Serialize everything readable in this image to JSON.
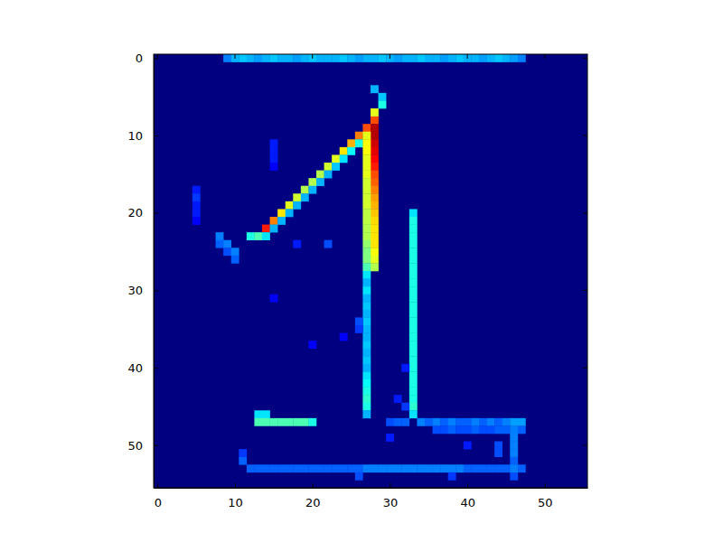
{
  "chart_data": {
    "type": "heatmap",
    "xlim": [
      -0.5,
      55.5
    ],
    "ylim": [
      55.5,
      -0.5
    ],
    "xticks": [
      0,
      10,
      20,
      30,
      40,
      50
    ],
    "yticks": [
      0,
      10,
      20,
      30,
      40,
      50
    ],
    "zlim": [
      0,
      1
    ],
    "cells": [
      [
        0,
        9,
        0.25
      ],
      [
        0,
        10,
        0.3
      ],
      [
        0,
        11,
        0.32
      ],
      [
        0,
        12,
        0.3
      ],
      [
        0,
        13,
        0.28
      ],
      [
        0,
        14,
        0.3
      ],
      [
        0,
        15,
        0.32
      ],
      [
        0,
        16,
        0.3
      ],
      [
        0,
        17,
        0.3
      ],
      [
        0,
        18,
        0.28
      ],
      [
        0,
        19,
        0.3
      ],
      [
        0,
        20,
        0.32
      ],
      [
        0,
        21,
        0.3
      ],
      [
        0,
        22,
        0.3
      ],
      [
        0,
        23,
        0.3
      ],
      [
        0,
        24,
        0.32
      ],
      [
        0,
        25,
        0.3
      ],
      [
        0,
        26,
        0.28
      ],
      [
        0,
        27,
        0.3
      ],
      [
        0,
        28,
        0.3
      ],
      [
        0,
        29,
        0.32
      ],
      [
        0,
        30,
        0.3
      ],
      [
        0,
        31,
        0.28
      ],
      [
        0,
        32,
        0.3
      ],
      [
        0,
        33,
        0.3
      ],
      [
        0,
        34,
        0.32
      ],
      [
        0,
        35,
        0.3
      ],
      [
        0,
        36,
        0.3
      ],
      [
        0,
        37,
        0.28
      ],
      [
        0,
        38,
        0.3
      ],
      [
        0,
        39,
        0.32
      ],
      [
        0,
        40,
        0.3
      ],
      [
        0,
        41,
        0.3
      ],
      [
        0,
        42,
        0.28
      ],
      [
        0,
        43,
        0.3
      ],
      [
        0,
        44,
        0.32
      ],
      [
        0,
        45,
        0.3
      ],
      [
        0,
        46,
        0.28
      ],
      [
        0,
        47,
        0.25
      ],
      [
        4,
        28,
        0.3
      ],
      [
        5,
        29,
        0.32
      ],
      [
        6,
        29,
        0.4
      ],
      [
        23,
        12,
        0.4
      ],
      [
        23,
        13,
        0.45
      ],
      [
        22,
        14,
        0.85
      ],
      [
        21,
        15,
        0.75
      ],
      [
        20,
        16,
        0.65
      ],
      [
        19,
        17,
        0.6
      ],
      [
        18,
        18,
        0.58
      ],
      [
        17,
        19,
        0.55
      ],
      [
        16,
        20,
        0.55
      ],
      [
        15,
        21,
        0.55
      ],
      [
        14,
        22,
        0.58
      ],
      [
        13,
        23,
        0.6
      ],
      [
        12,
        24,
        0.65
      ],
      [
        11,
        25,
        0.7
      ],
      [
        10,
        26,
        0.75
      ],
      [
        9,
        27,
        0.8
      ],
      [
        8,
        28,
        0.8
      ],
      [
        7,
        28,
        0.6
      ],
      [
        23,
        14,
        0.35
      ],
      [
        22,
        15,
        0.3
      ],
      [
        21,
        16,
        0.3
      ],
      [
        20,
        17,
        0.3
      ],
      [
        19,
        18,
        0.3
      ],
      [
        18,
        19,
        0.3
      ],
      [
        17,
        20,
        0.3
      ],
      [
        16,
        21,
        0.3
      ],
      [
        15,
        22,
        0.3
      ],
      [
        14,
        23,
        0.32
      ],
      [
        13,
        24,
        0.35
      ],
      [
        12,
        25,
        0.38
      ],
      [
        11,
        26,
        0.4
      ],
      [
        9,
        28,
        0.95
      ],
      [
        10,
        28,
        0.95
      ],
      [
        11,
        28,
        0.92
      ],
      [
        12,
        28,
        0.9
      ],
      [
        13,
        28,
        0.88
      ],
      [
        14,
        28,
        0.85
      ],
      [
        15,
        28,
        0.8
      ],
      [
        16,
        28,
        0.78
      ],
      [
        17,
        28,
        0.75
      ],
      [
        18,
        28,
        0.72
      ],
      [
        19,
        28,
        0.7
      ],
      [
        20,
        28,
        0.68
      ],
      [
        21,
        28,
        0.66
      ],
      [
        22,
        28,
        0.65
      ],
      [
        23,
        28,
        0.65
      ],
      [
        24,
        28,
        0.65
      ],
      [
        25,
        28,
        0.62
      ],
      [
        26,
        28,
        0.6
      ],
      [
        27,
        28,
        0.55
      ],
      [
        10,
        27,
        0.6
      ],
      [
        11,
        27,
        0.62
      ],
      [
        12,
        27,
        0.62
      ],
      [
        13,
        27,
        0.6
      ],
      [
        14,
        27,
        0.6
      ],
      [
        15,
        27,
        0.6
      ],
      [
        16,
        27,
        0.58
      ],
      [
        17,
        27,
        0.58
      ],
      [
        18,
        27,
        0.58
      ],
      [
        19,
        27,
        0.58
      ],
      [
        20,
        27,
        0.56
      ],
      [
        21,
        27,
        0.56
      ],
      [
        22,
        27,
        0.55
      ],
      [
        23,
        27,
        0.55
      ],
      [
        24,
        27,
        0.52
      ],
      [
        25,
        27,
        0.5
      ],
      [
        26,
        27,
        0.5
      ],
      [
        27,
        27,
        0.45
      ],
      [
        28,
        27,
        0.35
      ],
      [
        29,
        27,
        0.3
      ],
      [
        30,
        27,
        0.35
      ],
      [
        31,
        27,
        0.3
      ],
      [
        32,
        27,
        0.32
      ],
      [
        33,
        27,
        0.3
      ],
      [
        34,
        27,
        0.32
      ],
      [
        35,
        27,
        0.3
      ],
      [
        36,
        27,
        0.3
      ],
      [
        37,
        27,
        0.32
      ],
      [
        38,
        27,
        0.3
      ],
      [
        39,
        27,
        0.32
      ],
      [
        40,
        27,
        0.3
      ],
      [
        41,
        27,
        0.35
      ],
      [
        42,
        27,
        0.38
      ],
      [
        43,
        27,
        0.4
      ],
      [
        44,
        27,
        0.42
      ],
      [
        45,
        27,
        0.4
      ],
      [
        46,
        27,
        0.3
      ],
      [
        20,
        33,
        0.35
      ],
      [
        21,
        33,
        0.4
      ],
      [
        22,
        33,
        0.4
      ],
      [
        23,
        33,
        0.4
      ],
      [
        24,
        33,
        0.4
      ],
      [
        25,
        33,
        0.4
      ],
      [
        26,
        33,
        0.4
      ],
      [
        27,
        33,
        0.4
      ],
      [
        28,
        33,
        0.4
      ],
      [
        29,
        33,
        0.4
      ],
      [
        30,
        33,
        0.4
      ],
      [
        31,
        33,
        0.4
      ],
      [
        32,
        33,
        0.4
      ],
      [
        33,
        33,
        0.4
      ],
      [
        34,
        33,
        0.4
      ],
      [
        35,
        33,
        0.4
      ],
      [
        36,
        33,
        0.4
      ],
      [
        37,
        33,
        0.4
      ],
      [
        38,
        33,
        0.4
      ],
      [
        39,
        33,
        0.4
      ],
      [
        40,
        33,
        0.4
      ],
      [
        41,
        33,
        0.4
      ],
      [
        42,
        33,
        0.4
      ],
      [
        43,
        33,
        0.4
      ],
      [
        44,
        33,
        0.4
      ],
      [
        45,
        33,
        0.42
      ],
      [
        46,
        33,
        0.35
      ],
      [
        46,
        13,
        0.35
      ],
      [
        46,
        14,
        0.35
      ],
      [
        47,
        13,
        0.45
      ],
      [
        47,
        14,
        0.45
      ],
      [
        47,
        15,
        0.45
      ],
      [
        47,
        16,
        0.45
      ],
      [
        47,
        17,
        0.45
      ],
      [
        47,
        18,
        0.45
      ],
      [
        47,
        19,
        0.45
      ],
      [
        47,
        20,
        0.4
      ],
      [
        47,
        30,
        0.2
      ],
      [
        47,
        31,
        0.22
      ],
      [
        47,
        32,
        0.22
      ],
      [
        47,
        34,
        0.25
      ],
      [
        47,
        35,
        0.22
      ],
      [
        47,
        36,
        0.25
      ],
      [
        47,
        37,
        0.22
      ],
      [
        47,
        38,
        0.25
      ],
      [
        47,
        39,
        0.22
      ],
      [
        47,
        40,
        0.22
      ],
      [
        47,
        41,
        0.25
      ],
      [
        47,
        42,
        0.22
      ],
      [
        47,
        43,
        0.25
      ],
      [
        47,
        44,
        0.22
      ],
      [
        47,
        45,
        0.25
      ],
      [
        47,
        46,
        0.28
      ],
      [
        47,
        47,
        0.28
      ],
      [
        48,
        36,
        0.2
      ],
      [
        48,
        37,
        0.2
      ],
      [
        48,
        38,
        0.22
      ],
      [
        48,
        39,
        0.2
      ],
      [
        48,
        40,
        0.2
      ],
      [
        48,
        41,
        0.22
      ],
      [
        48,
        42,
        0.2
      ],
      [
        48,
        43,
        0.2
      ],
      [
        48,
        44,
        0.22
      ],
      [
        48,
        45,
        0.22
      ],
      [
        48,
        46,
        0.25
      ],
      [
        48,
        47,
        0.22
      ],
      [
        49,
        46,
        0.25
      ],
      [
        50,
        46,
        0.25
      ],
      [
        51,
        46,
        0.25
      ],
      [
        52,
        46,
        0.22
      ],
      [
        54,
        46,
        0.2
      ],
      [
        50,
        44,
        0.2
      ],
      [
        51,
        44,
        0.2
      ],
      [
        50,
        40,
        0.15
      ],
      [
        49,
        30,
        0.15
      ],
      [
        53,
        12,
        0.22
      ],
      [
        53,
        13,
        0.22
      ],
      [
        53,
        14,
        0.22
      ],
      [
        53,
        15,
        0.22
      ],
      [
        53,
        16,
        0.22
      ],
      [
        53,
        17,
        0.22
      ],
      [
        53,
        18,
        0.22
      ],
      [
        53,
        19,
        0.22
      ],
      [
        53,
        20,
        0.22
      ],
      [
        53,
        21,
        0.22
      ],
      [
        53,
        22,
        0.22
      ],
      [
        53,
        23,
        0.22
      ],
      [
        53,
        24,
        0.22
      ],
      [
        53,
        25,
        0.22
      ],
      [
        53,
        26,
        0.22
      ],
      [
        53,
        27,
        0.25
      ],
      [
        53,
        28,
        0.25
      ],
      [
        53,
        29,
        0.25
      ],
      [
        53,
        30,
        0.25
      ],
      [
        53,
        31,
        0.25
      ],
      [
        53,
        32,
        0.25
      ],
      [
        53,
        33,
        0.25
      ],
      [
        53,
        34,
        0.25
      ],
      [
        53,
        35,
        0.25
      ],
      [
        53,
        36,
        0.25
      ],
      [
        53,
        37,
        0.25
      ],
      [
        53,
        38,
        0.25
      ],
      [
        53,
        39,
        0.25
      ],
      [
        53,
        40,
        0.22
      ],
      [
        53,
        41,
        0.22
      ],
      [
        53,
        42,
        0.22
      ],
      [
        53,
        43,
        0.22
      ],
      [
        53,
        44,
        0.22
      ],
      [
        53,
        45,
        0.22
      ],
      [
        53,
        46,
        0.25
      ],
      [
        53,
        47,
        0.22
      ],
      [
        52,
        11,
        0.22
      ],
      [
        51,
        11,
        0.18
      ],
      [
        54,
        26,
        0.2
      ],
      [
        54,
        38,
        0.18
      ],
      [
        23,
        8,
        0.25
      ],
      [
        24,
        8,
        0.22
      ],
      [
        24,
        9,
        0.25
      ],
      [
        25,
        9,
        0.2
      ],
      [
        25,
        10,
        0.25
      ],
      [
        26,
        10,
        0.22
      ],
      [
        17,
        5,
        0.15
      ],
      [
        18,
        5,
        0.18
      ],
      [
        19,
        5,
        0.15
      ],
      [
        20,
        5,
        0.15
      ],
      [
        21,
        5,
        0.12
      ],
      [
        11,
        15,
        0.15
      ],
      [
        12,
        15,
        0.15
      ],
      [
        13,
        15,
        0.15
      ],
      [
        14,
        15,
        0.12
      ],
      [
        24,
        18,
        0.15
      ],
      [
        24,
        22,
        0.2
      ],
      [
        31,
        15,
        0.12
      ],
      [
        37,
        20,
        0.12
      ],
      [
        36,
        24,
        0.12
      ],
      [
        34,
        26,
        0.2
      ],
      [
        35,
        26,
        0.18
      ],
      [
        40,
        32,
        0.15
      ],
      [
        44,
        31,
        0.15
      ],
      [
        45,
        32,
        0.18
      ]
    ]
  }
}
